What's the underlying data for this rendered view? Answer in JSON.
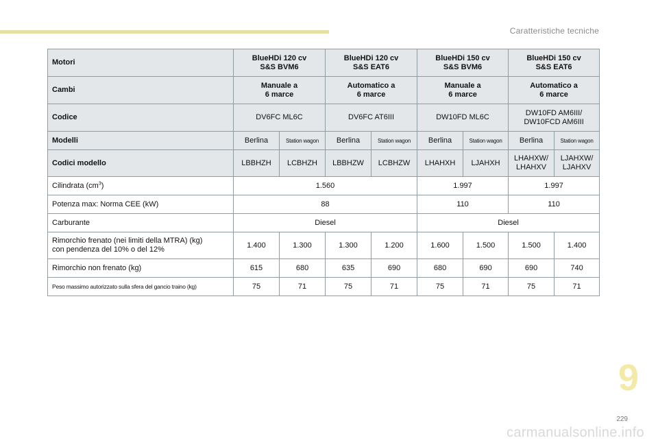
{
  "header": {
    "section_title": "Caratteristiche tecniche"
  },
  "footer": {
    "chapter": "9",
    "page": "229",
    "watermark": "carmanualsonline.info"
  },
  "table": {
    "motori": {
      "label": "Motori",
      "values": [
        "BlueHDi 120 cv\nS&S BVM6",
        "BlueHDi 120 cv\nS&S EAT6",
        "BlueHDi 150 cv\nS&S BVM6",
        "BlueHDi 150 cv\nS&S EAT6"
      ]
    },
    "cambi": {
      "label": "Cambi",
      "values": [
        "Manuale a\n6 marce",
        "Automatico a\n6 marce",
        "Manuale a\n6 marce",
        "Automatico a\n6 marce"
      ]
    },
    "codice": {
      "label": "Codice",
      "values": [
        "DV6FC ML6C",
        "DV6FC AT6III",
        "DW10FD ML6C",
        "DW10FD AM6III/\nDW10FCD AM6III"
      ]
    },
    "modelli": {
      "label": "Modelli",
      "values": [
        "Berlina",
        "Station wagon",
        "Berlina",
        "Station wagon",
        "Berlina",
        "Station wagon",
        "Berlina",
        "Station wagon"
      ]
    },
    "codici_modello": {
      "label": "Codici modello",
      "values": [
        "LBBHZH",
        "LCBHZH",
        "LBBHZW",
        "LCBHZW",
        "LHAHXH",
        "LJAHXH",
        "LHAHXW/\nLHAHXV",
        "LJAHXW/\nLJAHXV"
      ]
    },
    "cilindrata": {
      "label_main": "Cilindrata (cm",
      "label_sup": "3",
      "label_end": ")",
      "values": [
        "1.560",
        "1.997",
        "1.997"
      ]
    },
    "potenza": {
      "label": "Potenza max: Norma CEE (kW)",
      "values": [
        "88",
        "110",
        "110"
      ]
    },
    "carburante": {
      "label": "Carburante",
      "values": [
        "Diesel",
        "Diesel"
      ]
    },
    "rimorchio_frenato": {
      "label": "Rimorchio frenato (nei limiti della MTRA) (kg)\ncon pendenza del 10% o del 12%",
      "values": [
        "1.400",
        "1.300",
        "1.300",
        "1.200",
        "1.600",
        "1.500",
        "1.500",
        "1.400"
      ]
    },
    "rimorchio_non_frenato": {
      "label": "Rimorchio non frenato (kg)",
      "values": [
        "615",
        "680",
        "635",
        "690",
        "680",
        "690",
        "690",
        "740"
      ]
    },
    "peso_sfera": {
      "label": "Peso massimo autorizzato sulla sfera del gancio traino (kg)",
      "values": [
        "75",
        "71",
        "75",
        "71",
        "75",
        "71",
        "75",
        "71"
      ]
    }
  }
}
